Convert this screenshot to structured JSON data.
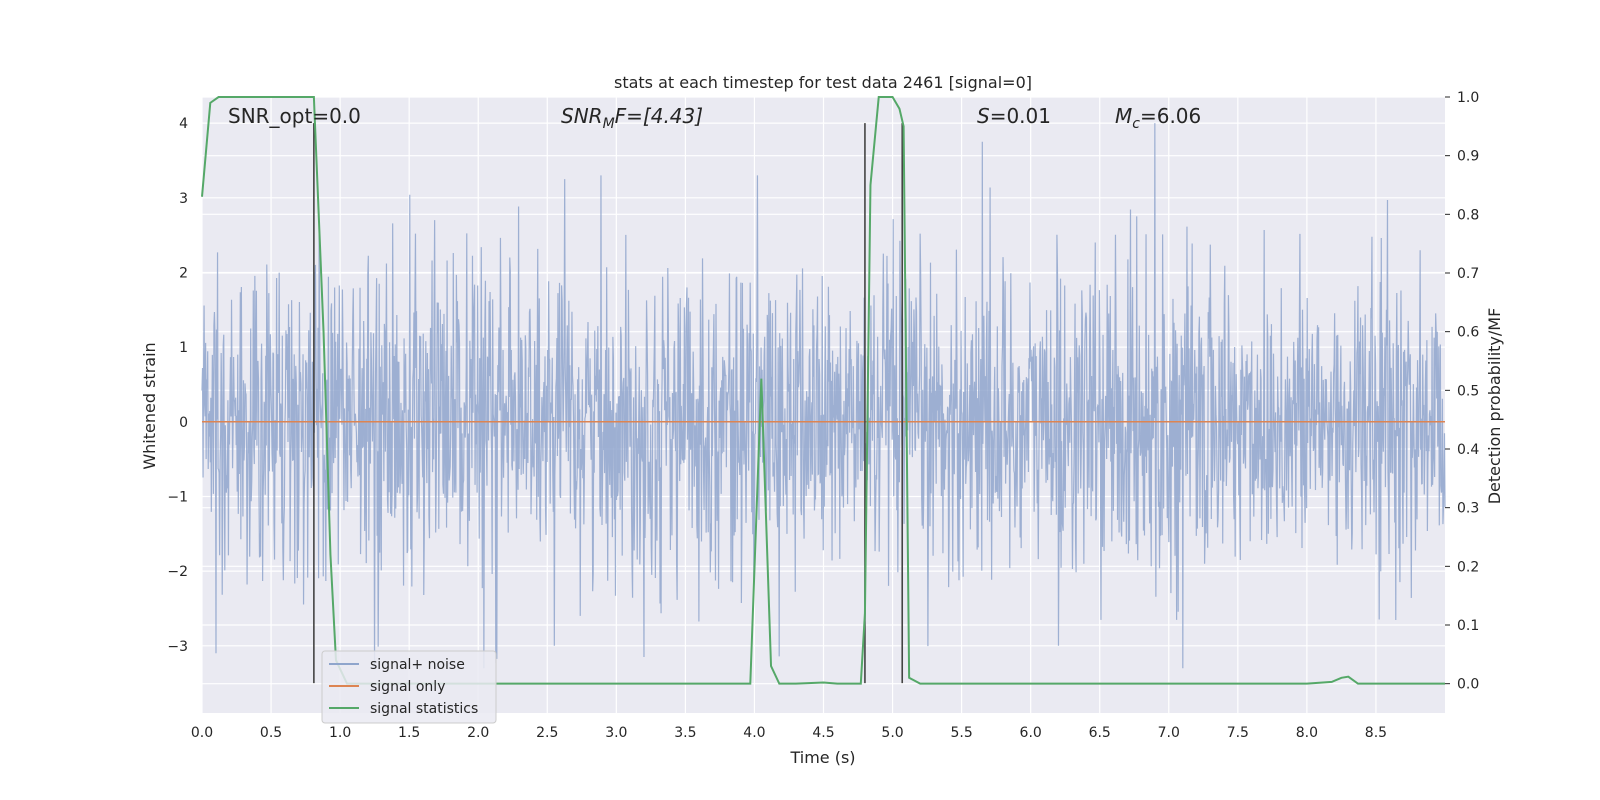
{
  "chart_data": {
    "type": "line",
    "title": "stats at each timestep for test data 2461 [signal=0]",
    "xlabel": "Time (s)",
    "ylabel_left": "Whitened strain",
    "ylabel_right": "Detection probability/MF",
    "xlim": [
      0,
      9.0
    ],
    "ylim_left": [
      -3.9,
      4.35
    ],
    "ylim_right": [
      -0.05,
      1.0
    ],
    "x_ticks": [
      0.0,
      0.5,
      1.0,
      1.5,
      2.0,
      2.5,
      3.0,
      3.5,
      4.0,
      4.5,
      5.0,
      5.5,
      6.0,
      6.5,
      7.0,
      7.5,
      8.0,
      8.5
    ],
    "x_tick_labels": [
      "0.0",
      "0.5",
      "1.0",
      "1.5",
      "2.0",
      "2.5",
      "3.0",
      "3.5",
      "4.0",
      "4.5",
      "5.0",
      "5.5",
      "6.0",
      "6.5",
      "7.0",
      "7.5",
      "8.0",
      "8.5"
    ],
    "y_left_ticks": [
      -3,
      -2,
      -1,
      0,
      1,
      2,
      3,
      4
    ],
    "y_left_tick_labels": [
      "−3",
      "−2",
      "−1",
      "0",
      "1",
      "2",
      "3",
      "4"
    ],
    "y_right_ticks": [
      0.0,
      0.1,
      0.2,
      0.3,
      0.4,
      0.5,
      0.6,
      0.7,
      0.8,
      0.9,
      1.0
    ],
    "y_right_tick_labels": [
      "0.0",
      "0.1",
      "0.2",
      "0.3",
      "0.4",
      "0.5",
      "0.6",
      "0.7",
      "0.8",
      "0.9",
      "1.0"
    ],
    "grid": true,
    "legend_location": "lower-left",
    "annotations": {
      "snr_opt": "SNR_opt=0.0",
      "snr_mf_main": "SNR",
      "snr_mf_sub": "M",
      "snr_mf_rest": "F=[4.43]",
      "s_main": "S",
      "s_rest": "=0.01",
      "mc_main": "M",
      "mc_sub": "c",
      "mc_rest": "=6.06"
    },
    "series": [
      {
        "name": "signal+ noise",
        "color": "#8fa5cc",
        "kind": "noise",
        "x_range": [
          0,
          9.0
        ],
        "y_range_approx": [
          -3.5,
          4.0
        ],
        "note_points": [
          {
            "x": 0.1,
            "y": -3.1
          },
          {
            "x": 1.25,
            "y": -3.3
          },
          {
            "x": 2.55,
            "y": -3.0
          },
          {
            "x": 3.2,
            "y": -3.15
          },
          {
            "x": 5.65,
            "y": 3.75
          },
          {
            "x": 6.9,
            "y": 4.0
          },
          {
            "x": 7.1,
            "y": -3.3
          },
          {
            "x": 6.2,
            "y": -3.0
          }
        ]
      },
      {
        "name": "signal only",
        "color": "#dd8452",
        "x": [
          0,
          9.0
        ],
        "y": [
          0,
          0
        ]
      },
      {
        "name": "signal statistics",
        "color": "#55a868",
        "axis": "right",
        "x": [
          0.0,
          0.06,
          0.12,
          0.2,
          0.4,
          0.6,
          0.79,
          0.81,
          0.88,
          0.93,
          0.97,
          1.05,
          2.0,
          3.0,
          3.9,
          3.97,
          4.05,
          4.12,
          4.18,
          4.3,
          4.5,
          4.6,
          4.77,
          4.8,
          4.84,
          4.9,
          5.0,
          5.05,
          5.08,
          5.12,
          5.2,
          6.0,
          7.0,
          8.0,
          8.18,
          8.25,
          8.3,
          8.37,
          8.45,
          9.0
        ],
        "y": [
          0.83,
          0.99,
          1.0,
          1.0,
          1.0,
          1.0,
          1.0,
          1.0,
          0.6,
          0.22,
          0.04,
          0.0,
          0.0,
          0.0,
          0.0,
          0.0,
          0.52,
          0.03,
          0.0,
          0.0,
          0.002,
          0.0,
          0.0,
          0.12,
          0.85,
          1.0,
          1.0,
          0.98,
          0.95,
          0.01,
          0.0,
          0.0,
          0.0,
          0.0,
          0.003,
          0.01,
          0.012,
          0.0,
          0.0,
          0.0
        ]
      }
    ],
    "vertical_lines": [
      {
        "x": 0.81,
        "y_from": -3.5,
        "y_to": 4.0,
        "color": "#444444"
      },
      {
        "x": 4.8,
        "y_from": -3.5,
        "y_to": 4.0,
        "color": "#444444"
      },
      {
        "x": 5.07,
        "y_from": -3.5,
        "y_to": 4.0,
        "color": "#444444"
      }
    ]
  }
}
